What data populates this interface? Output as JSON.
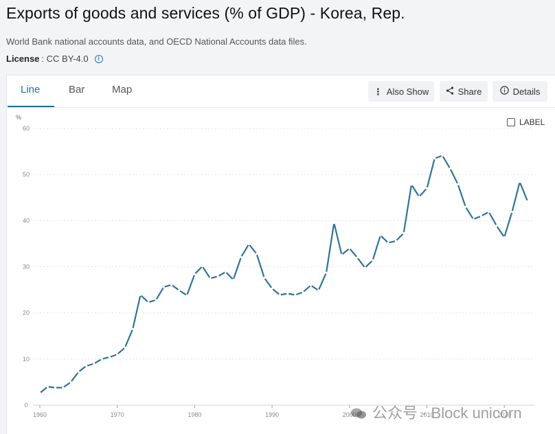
{
  "header": {
    "title": "Exports of goods and services (% of GDP) - Korea, Rep.",
    "source": "World Bank national accounts data, and OECD National Accounts data files.",
    "license_label": "License",
    "license_value": ": CC BY-4.0"
  },
  "tabs": [
    {
      "label": "Line",
      "active": true
    },
    {
      "label": "Bar",
      "active": false
    },
    {
      "label": "Map",
      "active": false
    }
  ],
  "toolbar": {
    "also_show": "Also Show",
    "share": "Share",
    "details": "Details"
  },
  "label_toggle": "LABEL",
  "watermark": "公众号 · Block unicorn",
  "chart_data": {
    "type": "line",
    "ylabel": "%",
    "xlim": [
      1960,
      2023
    ],
    "ylim": [
      0,
      60
    ],
    "yticks": [
      0,
      10,
      20,
      30,
      40,
      50,
      60
    ],
    "xticks": [
      1960,
      1970,
      1980,
      1990,
      2000,
      2010,
      2020
    ],
    "grid": true,
    "line_color": "#2f7297",
    "series": [
      {
        "x": [
          1960,
          1961,
          1962,
          1963,
          1964,
          1965,
          1966,
          1967,
          1968,
          1969,
          1970,
          1971,
          1972,
          1973,
          1974,
          1975,
          1976,
          1977,
          1978,
          1979,
          1980,
          1981,
          1982,
          1983,
          1984,
          1985,
          1986,
          1987,
          1988,
          1989,
          1990,
          1991,
          1992,
          1993,
          1994,
          1995,
          1996,
          1997,
          1998,
          1999,
          2000,
          2001,
          2002,
          2003,
          2004,
          2005,
          2006,
          2007,
          2008,
          2009,
          2010,
          2011,
          2012,
          2013,
          2014,
          2015,
          2016,
          2017,
          2018,
          2019,
          2020,
          2021,
          2022,
          2023
        ],
        "values": [
          2.6,
          4.0,
          3.8,
          3.8,
          5.0,
          7.2,
          8.5,
          9.0,
          10.0,
          10.4,
          11.0,
          12.5,
          16.5,
          23.9,
          22.3,
          22.8,
          25.6,
          26.1,
          24.9,
          23.8,
          28.4,
          30.1,
          27.5,
          27.9,
          28.9,
          27.2,
          32.1,
          34.9,
          32.8,
          27.6,
          25.3,
          23.9,
          24.2,
          23.9,
          24.5,
          26.0,
          24.9,
          28.7,
          39.5,
          32.6,
          34.0,
          32.0,
          29.8,
          31.4,
          36.8,
          35.2,
          35.6,
          37.3,
          47.8,
          45.2,
          47.0,
          53.5,
          54.1,
          51.3,
          47.9,
          43.0,
          40.3,
          41.0,
          41.9,
          38.9,
          36.4,
          41.9,
          48.4,
          44.2
        ]
      }
    ]
  }
}
